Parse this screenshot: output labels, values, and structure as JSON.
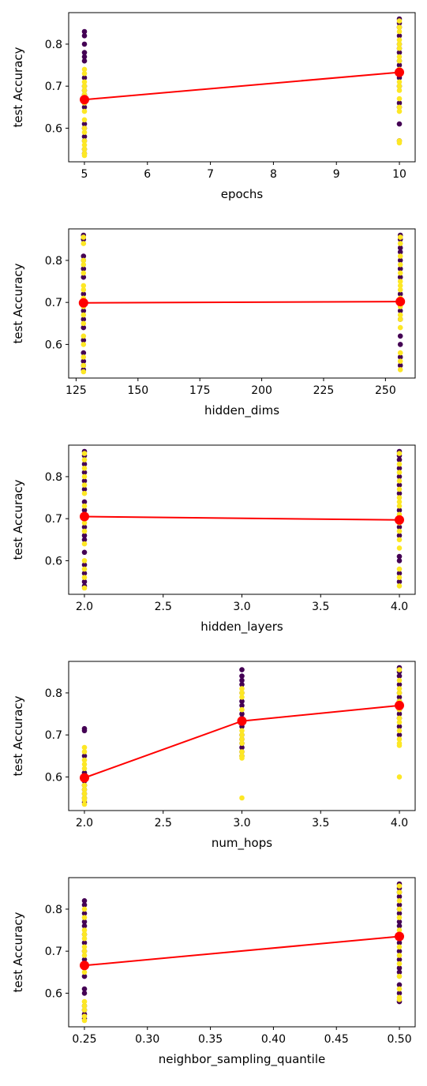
{
  "colors": {
    "low": "#440154",
    "high": "#fde725",
    "mean_line": "#ff0000",
    "axes": "#000000"
  },
  "chart_data": [
    {
      "type": "scatter",
      "xlabel": "epochs",
      "ylabel": "test Accuracy",
      "xlim": [
        4.75,
        10.25
      ],
      "ylim": [
        0.52,
        0.875
      ],
      "xticks": [
        "5",
        "6",
        "7",
        "8",
        "9",
        "10"
      ],
      "xtick_values": [
        5,
        6,
        7,
        8,
        9,
        10
      ],
      "yticks": [
        "0.6",
        "0.7",
        "0.8"
      ],
      "ytick_values": [
        0.6,
        0.7,
        0.8
      ],
      "points": [
        {
          "x": 5,
          "y": [
            0.83,
            0.82,
            0.8,
            0.78,
            0.77,
            0.76,
            0.72,
            0.7,
            0.69,
            0.68,
            0.66,
            0.65,
            0.61,
            0.6,
            0.58,
            0.57,
            0.55,
            0.54
          ],
          "c": "low"
        },
        {
          "x": 5,
          "y": [
            0.74,
            0.73,
            0.71,
            0.7,
            0.69,
            0.68,
            0.67,
            0.66,
            0.64,
            0.62,
            0.6,
            0.59,
            0.57,
            0.56,
            0.55,
            0.54,
            0.535
          ],
          "c": "high"
        },
        {
          "x": 10,
          "y": [
            0.86,
            0.85,
            0.84,
            0.82,
            0.8,
            0.79,
            0.78,
            0.76,
            0.75,
            0.74,
            0.72,
            0.7,
            0.66,
            0.65,
            0.61,
            0.57
          ],
          "c": "low"
        },
        {
          "x": 10,
          "y": [
            0.855,
            0.84,
            0.83,
            0.81,
            0.8,
            0.79,
            0.77,
            0.76,
            0.74,
            0.73,
            0.71,
            0.7,
            0.69,
            0.67,
            0.65,
            0.64,
            0.57,
            0.565
          ],
          "c": "high"
        }
      ],
      "mean_line": {
        "x": [
          5,
          10
        ],
        "y": [
          0.668,
          0.733
        ]
      }
    },
    {
      "type": "scatter",
      "xlabel": "hidden_dims",
      "ylabel": "test Accuracy",
      "xlim": [
        122,
        262
      ],
      "ylim": [
        0.52,
        0.875
      ],
      "xticks": [
        "125",
        "150",
        "175",
        "200",
        "225",
        "250"
      ],
      "xtick_values": [
        125,
        150,
        175,
        200,
        225,
        250
      ],
      "yticks": [
        "0.6",
        "0.7",
        "0.8"
      ],
      "ytick_values": [
        0.6,
        0.7,
        0.8
      ],
      "points": [
        {
          "x": 128,
          "y": [
            0.86,
            0.85,
            0.81,
            0.8,
            0.78,
            0.76,
            0.72,
            0.7,
            0.68,
            0.66,
            0.64,
            0.61,
            0.58,
            0.56,
            0.55,
            0.54
          ],
          "c": "low"
        },
        {
          "x": 128,
          "y": [
            0.855,
            0.84,
            0.8,
            0.79,
            0.77,
            0.74,
            0.73,
            0.71,
            0.69,
            0.67,
            0.65,
            0.62,
            0.6,
            0.57,
            0.55,
            0.535
          ],
          "c": "high"
        },
        {
          "x": 256,
          "y": [
            0.86,
            0.85,
            0.83,
            0.82,
            0.8,
            0.78,
            0.76,
            0.72,
            0.7,
            0.68,
            0.66,
            0.62,
            0.6,
            0.57,
            0.55
          ],
          "c": "low"
        },
        {
          "x": 256,
          "y": [
            0.855,
            0.84,
            0.81,
            0.79,
            0.77,
            0.75,
            0.74,
            0.73,
            0.71,
            0.69,
            0.67,
            0.66,
            0.64,
            0.58,
            0.56,
            0.54
          ],
          "c": "high"
        }
      ],
      "mean_line": {
        "x": [
          128,
          256
        ],
        "y": [
          0.699,
          0.702
        ]
      }
    },
    {
      "type": "scatter",
      "xlabel": "hidden_layers",
      "ylabel": "test Accuracy",
      "xlim": [
        1.9,
        4.1
      ],
      "ylim": [
        0.52,
        0.875
      ],
      "xticks": [
        "2.0",
        "2.5",
        "3.0",
        "3.5",
        "4.0"
      ],
      "xtick_values": [
        2.0,
        2.5,
        3.0,
        3.5,
        4.0
      ],
      "yticks": [
        "0.6",
        "0.7",
        "0.8"
      ],
      "ytick_values": [
        0.6,
        0.7,
        0.8
      ],
      "points": [
        {
          "x": 2,
          "y": [
            0.86,
            0.85,
            0.83,
            0.81,
            0.79,
            0.77,
            0.74,
            0.72,
            0.7,
            0.68,
            0.66,
            0.65,
            0.62,
            0.59,
            0.57,
            0.55,
            0.54
          ],
          "c": "low"
        },
        {
          "x": 2,
          "y": [
            0.855,
            0.84,
            0.82,
            0.8,
            0.78,
            0.76,
            0.73,
            0.71,
            0.69,
            0.67,
            0.64,
            0.6,
            0.58,
            0.56,
            0.535
          ],
          "c": "high"
        },
        {
          "x": 4,
          "y": [
            0.86,
            0.85,
            0.84,
            0.82,
            0.8,
            0.78,
            0.76,
            0.72,
            0.7,
            0.68,
            0.66,
            0.61,
            0.6,
            0.57,
            0.55
          ],
          "c": "low"
        },
        {
          "x": 4,
          "y": [
            0.855,
            0.83,
            0.81,
            0.79,
            0.77,
            0.75,
            0.74,
            0.73,
            0.71,
            0.69,
            0.67,
            0.65,
            0.63,
            0.58,
            0.56,
            0.54
          ],
          "c": "high"
        }
      ],
      "mean_line": {
        "x": [
          2,
          4
        ],
        "y": [
          0.705,
          0.697
        ]
      }
    },
    {
      "type": "scatter",
      "xlabel": "num_hops",
      "ylabel": "test Accuracy",
      "xlim": [
        1.9,
        4.1
      ],
      "ylim": [
        0.52,
        0.875
      ],
      "xticks": [
        "2.0",
        "2.5",
        "3.0",
        "3.5",
        "4.0"
      ],
      "xtick_values": [
        2.0,
        2.5,
        3.0,
        3.5,
        4.0
      ],
      "yticks": [
        "0.6",
        "0.7",
        "0.8"
      ],
      "ytick_values": [
        0.6,
        0.7,
        0.8
      ],
      "points": [
        {
          "x": 2,
          "y": [
            0.715,
            0.71,
            0.65,
            0.61,
            0.6,
            0.59,
            0.58,
            0.57,
            0.56,
            0.55,
            0.54
          ],
          "c": "low"
        },
        {
          "x": 2,
          "y": [
            0.67,
            0.66,
            0.64,
            0.63,
            0.62,
            0.6,
            0.58,
            0.57,
            0.56,
            0.55,
            0.545,
            0.535
          ],
          "c": "high"
        },
        {
          "x": 3,
          "y": [
            0.855,
            0.84,
            0.83,
            0.82,
            0.8,
            0.78,
            0.77,
            0.75,
            0.74,
            0.72,
            0.7,
            0.69,
            0.68,
            0.67,
            0.66,
            0.65
          ],
          "c": "low"
        },
        {
          "x": 3,
          "y": [
            0.81,
            0.8,
            0.79,
            0.76,
            0.73,
            0.71,
            0.7,
            0.69,
            0.68,
            0.66,
            0.65,
            0.645,
            0.55
          ],
          "c": "high"
        },
        {
          "x": 4,
          "y": [
            0.86,
            0.85,
            0.84,
            0.82,
            0.8,
            0.79,
            0.78,
            0.77,
            0.76,
            0.75,
            0.74,
            0.72,
            0.7
          ],
          "c": "low"
        },
        {
          "x": 4,
          "y": [
            0.855,
            0.83,
            0.81,
            0.8,
            0.78,
            0.76,
            0.74,
            0.73,
            0.71,
            0.69,
            0.68,
            0.675,
            0.6
          ],
          "c": "high"
        }
      ],
      "mean_line": {
        "x": [
          2,
          3,
          4
        ],
        "y": [
          0.598,
          0.733,
          0.77
        ]
      }
    },
    {
      "type": "scatter",
      "xlabel": "neighbor_sampling_quantile",
      "ylabel": "test Accuracy",
      "xlim": [
        0.2375,
        0.5125
      ],
      "ylim": [
        0.52,
        0.875
      ],
      "xticks": [
        "0.25",
        "0.30",
        "0.35",
        "0.40",
        "0.45",
        "0.50"
      ],
      "xtick_values": [
        0.25,
        0.3,
        0.35,
        0.4,
        0.45,
        0.5
      ],
      "yticks": [
        "0.6",
        "0.7",
        "0.8"
      ],
      "ytick_values": [
        0.6,
        0.7,
        0.8
      ],
      "points": [
        {
          "x": 0.25,
          "y": [
            0.82,
            0.81,
            0.79,
            0.77,
            0.76,
            0.74,
            0.72,
            0.7,
            0.68,
            0.66,
            0.64,
            0.61,
            0.6,
            0.57,
            0.56,
            0.55,
            0.54
          ],
          "c": "low"
        },
        {
          "x": 0.25,
          "y": [
            0.8,
            0.78,
            0.75,
            0.74,
            0.73,
            0.71,
            0.7,
            0.69,
            0.67,
            0.65,
            0.58,
            0.57,
            0.56,
            0.545,
            0.535
          ],
          "c": "high"
        },
        {
          "x": 0.5,
          "y": [
            0.86,
            0.85,
            0.84,
            0.83,
            0.81,
            0.8,
            0.79,
            0.77,
            0.76,
            0.74,
            0.72,
            0.7,
            0.68,
            0.66,
            0.65,
            0.62,
            0.6,
            0.58
          ],
          "c": "low"
        },
        {
          "x": 0.5,
          "y": [
            0.855,
            0.84,
            0.82,
            0.8,
            0.78,
            0.75,
            0.73,
            0.71,
            0.69,
            0.67,
            0.64,
            0.61,
            0.59,
            0.585
          ],
          "c": "high"
        }
      ],
      "mean_line": {
        "x": [
          0.25,
          0.5
        ],
        "y": [
          0.666,
          0.735
        ]
      }
    }
  ]
}
